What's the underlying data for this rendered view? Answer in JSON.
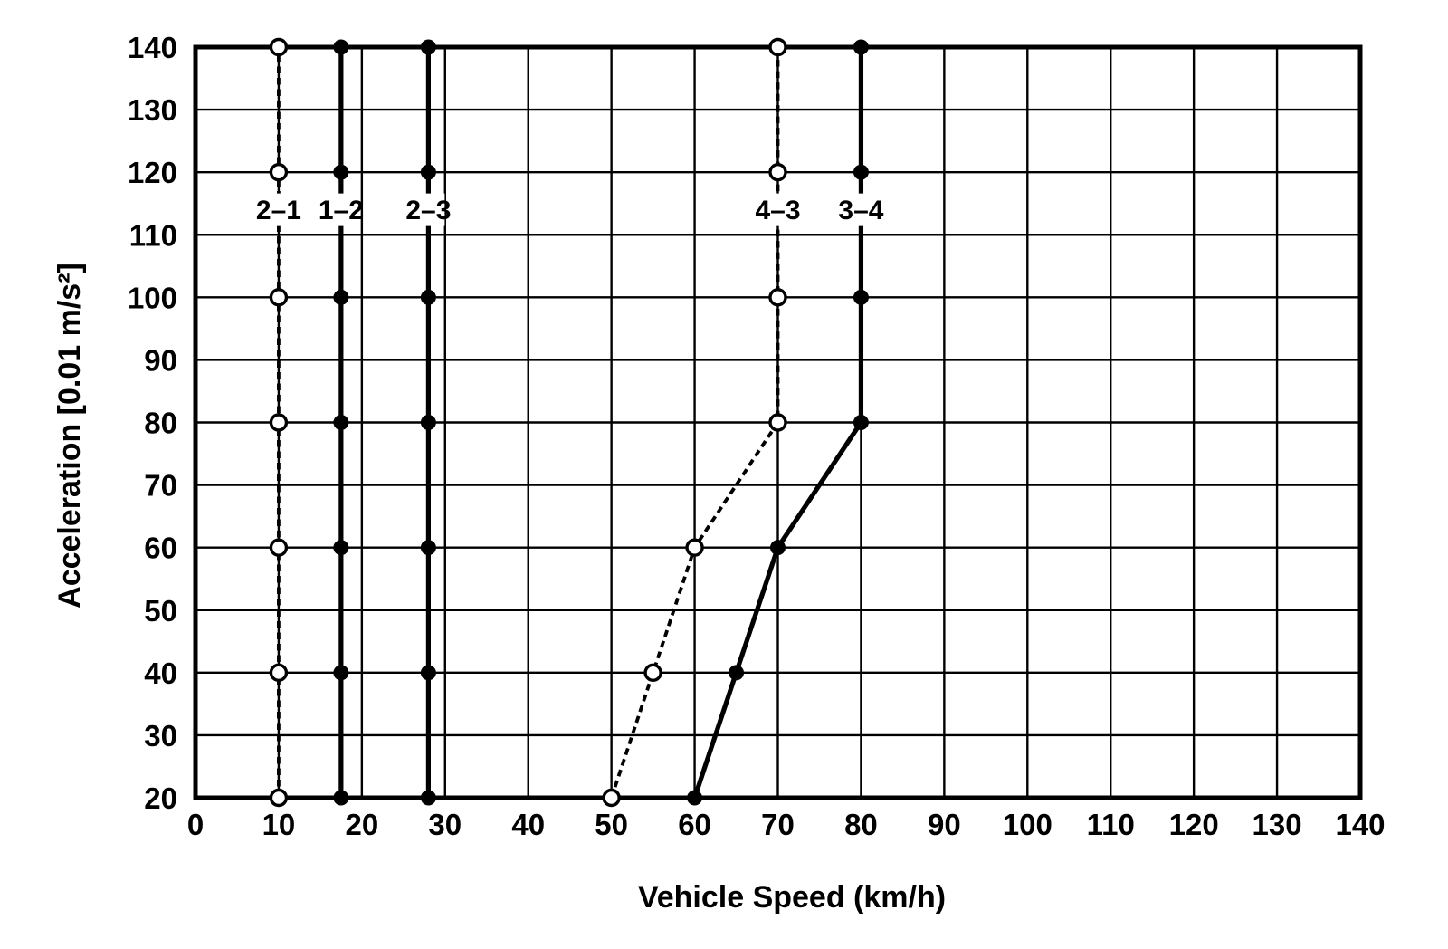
{
  "chart_data": {
    "type": "line",
    "title": "",
    "xlabel": "Vehicle Speed (km/h)",
    "ylabel": "Acceleration [0.01 m/s²]",
    "xlim": [
      0,
      140
    ],
    "ylim": [
      20,
      140
    ],
    "xticks": [
      0,
      10,
      20,
      30,
      40,
      50,
      60,
      70,
      80,
      90,
      100,
      110,
      120,
      130,
      140
    ],
    "yticks": [
      20,
      30,
      40,
      50,
      60,
      70,
      80,
      90,
      100,
      110,
      120,
      130,
      140
    ],
    "grid": true,
    "legend_position": "none",
    "background": "#ffffff",
    "foreground": "#000000",
    "series": [
      {
        "name": "2–1",
        "style": "dashed",
        "marker": "open-circle",
        "points": [
          [
            10,
            20
          ],
          [
            10,
            40
          ],
          [
            10,
            60
          ],
          [
            10,
            80
          ],
          [
            10,
            100
          ],
          [
            10,
            120
          ],
          [
            10,
            140
          ]
        ]
      },
      {
        "name": "1–2",
        "style": "solid",
        "marker": "filled-circle",
        "points": [
          [
            17.5,
            20
          ],
          [
            17.5,
            40
          ],
          [
            17.5,
            60
          ],
          [
            17.5,
            80
          ],
          [
            17.5,
            100
          ],
          [
            17.5,
            120
          ],
          [
            17.5,
            140
          ]
        ]
      },
      {
        "name": "2–3",
        "style": "solid",
        "marker": "filled-circle",
        "points": [
          [
            28,
            20
          ],
          [
            28,
            40
          ],
          [
            28,
            60
          ],
          [
            28,
            80
          ],
          [
            28,
            100
          ],
          [
            28,
            120
          ],
          [
            28,
            140
          ]
        ]
      },
      {
        "name": "4–3",
        "style": "dashed",
        "marker": "open-circle",
        "points": [
          [
            50,
            20
          ],
          [
            55,
            40
          ],
          [
            60,
            60
          ],
          [
            70,
            80
          ],
          [
            70,
            100
          ],
          [
            70,
            120
          ],
          [
            70,
            140
          ]
        ]
      },
      {
        "name": "3–4",
        "style": "solid",
        "marker": "filled-circle",
        "points": [
          [
            60,
            20
          ],
          [
            65,
            40
          ],
          [
            70,
            60
          ],
          [
            80,
            80
          ],
          [
            80,
            100
          ],
          [
            80,
            120
          ],
          [
            80,
            140
          ]
        ]
      }
    ],
    "series_labels": [
      {
        "text": "2–1",
        "x": 10,
        "y": 114
      },
      {
        "text": "1–2",
        "x": 17.5,
        "y": 114
      },
      {
        "text": "2–3",
        "x": 28,
        "y": 114
      },
      {
        "text": "4–3",
        "x": 70,
        "y": 114
      },
      {
        "text": "3–4",
        "x": 80,
        "y": 114
      }
    ]
  }
}
